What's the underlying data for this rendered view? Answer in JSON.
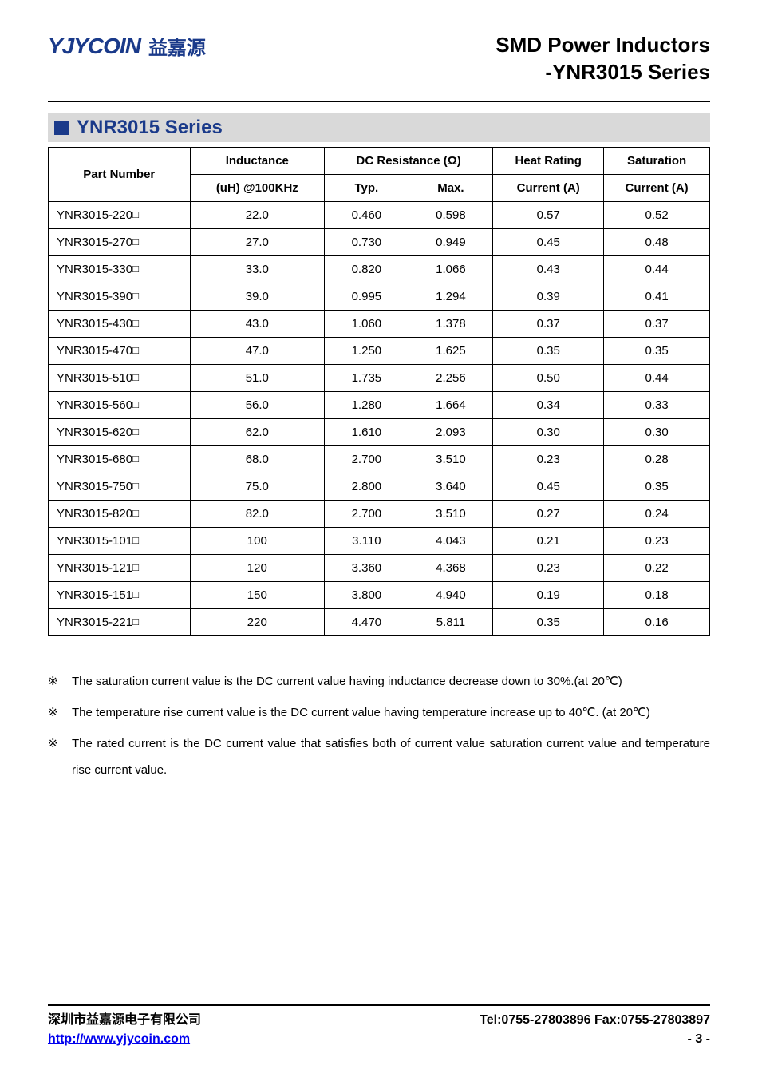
{
  "header": {
    "logo_text": "YJYCOIN",
    "logo_cn": "益嘉源",
    "title_line1": "SMD Power Inductors",
    "title_line2": "-YNR3015 Series"
  },
  "series": {
    "title": "YNR3015 Series",
    "square_color": "#1a3a8a",
    "bar_bg": "#d9d9d9"
  },
  "table": {
    "columns": {
      "part_number": "Part Number",
      "inductance_top": "Inductance",
      "inductance_bottom": "(uH) @100KHz",
      "dcr": "DC Resistance (Ω)",
      "dcr_typ": "Typ.",
      "dcr_max": "Max.",
      "heat_top": "Heat Rating",
      "heat_bottom": "Current (A)",
      "sat_top": "Saturation",
      "sat_bottom": "Current (A)"
    },
    "rows": [
      {
        "pn": "YNR3015-220",
        "ind": "22.0",
        "typ": "0.460",
        "max": "0.598",
        "heat": "0.57",
        "sat": "0.52"
      },
      {
        "pn": "YNR3015-270",
        "ind": "27.0",
        "typ": "0.730",
        "max": "0.949",
        "heat": "0.45",
        "sat": "0.48"
      },
      {
        "pn": "YNR3015-330",
        "ind": "33.0",
        "typ": "0.820",
        "max": "1.066",
        "heat": "0.43",
        "sat": "0.44"
      },
      {
        "pn": "YNR3015-390",
        "ind": "39.0",
        "typ": "0.995",
        "max": "1.294",
        "heat": "0.39",
        "sat": "0.41"
      },
      {
        "pn": "YNR3015-430",
        "ind": "43.0",
        "typ": "1.060",
        "max": "1.378",
        "heat": "0.37",
        "sat": "0.37"
      },
      {
        "pn": "YNR3015-470",
        "ind": "47.0",
        "typ": "1.250",
        "max": "1.625",
        "heat": "0.35",
        "sat": "0.35"
      },
      {
        "pn": "YNR3015-510",
        "ind": "51.0",
        "typ": "1.735",
        "max": "2.256",
        "heat": "0.50",
        "sat": "0.44"
      },
      {
        "pn": "YNR3015-560",
        "ind": "56.0",
        "typ": "1.280",
        "max": "1.664",
        "heat": "0.34",
        "sat": "0.33"
      },
      {
        "pn": "YNR3015-620",
        "ind": "62.0",
        "typ": "1.610",
        "max": "2.093",
        "heat": "0.30",
        "sat": "0.30"
      },
      {
        "pn": "YNR3015-680",
        "ind": "68.0",
        "typ": "2.700",
        "max": "3.510",
        "heat": "0.23",
        "sat": "0.28"
      },
      {
        "pn": "YNR3015-750",
        "ind": "75.0",
        "typ": "2.800",
        "max": "3.640",
        "heat": "0.45",
        "sat": "0.35"
      },
      {
        "pn": "YNR3015-820",
        "ind": "82.0",
        "typ": "2.700",
        "max": "3.510",
        "heat": "0.27",
        "sat": "0.24"
      },
      {
        "pn": "YNR3015-101",
        "ind": "100",
        "typ": "3.110",
        "max": "4.043",
        "heat": "0.21",
        "sat": "0.23"
      },
      {
        "pn": "YNR3015-121",
        "ind": "120",
        "typ": "3.360",
        "max": "4.368",
        "heat": "0.23",
        "sat": "0.22"
      },
      {
        "pn": "YNR3015-151",
        "ind": "150",
        "typ": "3.800",
        "max": "4.940",
        "heat": "0.19",
        "sat": "0.18"
      },
      {
        "pn": "YNR3015-221",
        "ind": "220",
        "typ": "4.470",
        "max": "5.811",
        "heat": "0.35",
        "sat": "0.16"
      }
    ],
    "suffix_box": "□",
    "border_color": "#000000",
    "font_size": 15
  },
  "notes": {
    "mark": "※",
    "items": [
      "The saturation current value is the DC current value having inductance decrease down to 30%.(at 20℃)",
      "The temperature rise current value is the DC current value having temperature increase up to 40℃. (at 20℃)",
      "The rated current is the DC current value that satisfies both of current value saturation current value and temperature rise current value."
    ]
  },
  "footer": {
    "company": "深圳市益嘉源电子有限公司",
    "contact": "Tel:0755-27803896   Fax:0755-27803897",
    "url": "http://www.yjycoin.com",
    "page": "- 3 -"
  }
}
